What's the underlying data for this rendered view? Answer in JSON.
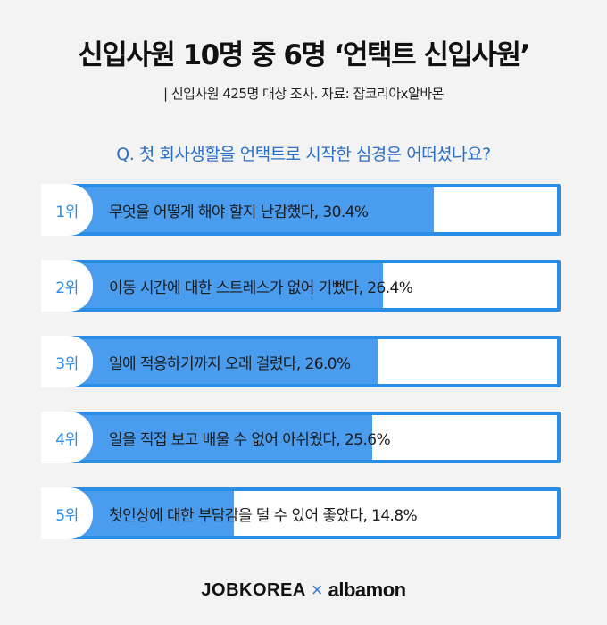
{
  "header": {
    "title": "신입사원 10명 중 6명 ‘언택트 신입사원’",
    "subtitle": "| 신입사원 425명 대상 조사. 자료: 잡코리아x알바몬",
    "question": "Q. 첫 회사생활을 언택트로 시작한 심경은 어떠셨나요?"
  },
  "chart_data": {
    "type": "bar",
    "orientation": "horizontal",
    "xlim": [
      0,
      40
    ],
    "categories": [
      "1위",
      "2위",
      "3위",
      "4위",
      "5위"
    ],
    "labels": [
      "무엇을 어떻게 해야 할지 난감했다, 30.4%",
      "이동 시간에 대한 스트레스가 없어 기뻤다, 26.4%",
      "일에 적응하기까지 오래 걸렸다, 26.0%",
      "일을 직접 보고 배울 수 없어 아쉬웠다, 25.6%",
      "첫인상에 대한 부담감을 덜 수 있어 좋았다, 14.8%"
    ],
    "values": [
      30.4,
      26.4,
      26.0,
      25.6,
      14.8
    ],
    "unit": "%"
  },
  "footer": {
    "brand1": "JOBKOREA",
    "separator": "×",
    "brand2": "albamon"
  },
  "colors": {
    "accent": "#2b8ee6",
    "bar": "#4a9cee",
    "question": "#2b6fc4",
    "background": "#f3f3f3"
  }
}
